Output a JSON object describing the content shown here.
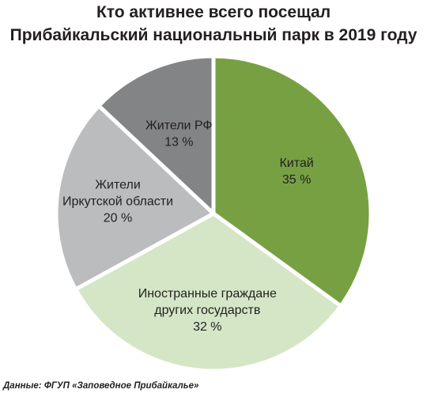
{
  "title_line1": "Кто активнее всего посещал",
  "title_line2": "Прибайкальский национальный парк в 2019 году",
  "source": "Данные: ФГУП «Заповедное Прибайкалье»",
  "chart_data": {
    "type": "pie",
    "title": "Кто активнее всего посещал Прибайкальский национальный парк в 2019 году",
    "unit": "%",
    "slices": [
      {
        "label_lines": [
          "Китай"
        ],
        "value": 35,
        "value_label": "35 %",
        "color": "#77a043"
      },
      {
        "label_lines": [
          "Иностранные граждане",
          "других государств"
        ],
        "value": 32,
        "value_label": "32 %",
        "color": "#d4e6c6"
      },
      {
        "label_lines": [
          "Жители",
          "Иркутской области"
        ],
        "value": 20,
        "value_label": "20 %",
        "color": "#bbbcbe"
      },
      {
        "label_lines": [
          "Жители РФ"
        ],
        "value": 13,
        "value_label": "13 %",
        "color": "#838486"
      }
    ]
  }
}
